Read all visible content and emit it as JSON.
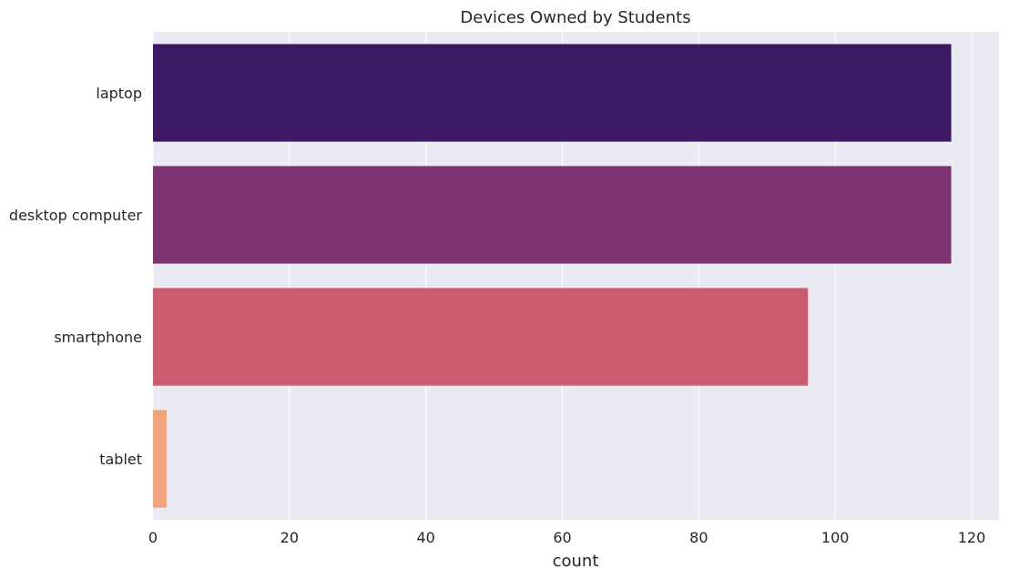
{
  "chart_data": {
    "type": "bar",
    "orientation": "horizontal",
    "title": "Devices Owned by Students",
    "xlabel": "count",
    "ylabel": "",
    "categories": [
      "laptop",
      "desktop computer",
      "smartphone",
      "tablet"
    ],
    "values": [
      117,
      117,
      96,
      2
    ],
    "colors": [
      "#3d1a63",
      "#7e3574",
      "#ca5c70",
      "#f0a57d"
    ],
    "xlim": [
      0,
      124
    ],
    "xticks": [
      0,
      20,
      40,
      60,
      80,
      100,
      120
    ],
    "grid": true,
    "background": "#eaeaf2",
    "gridColor": "#ffffff"
  }
}
